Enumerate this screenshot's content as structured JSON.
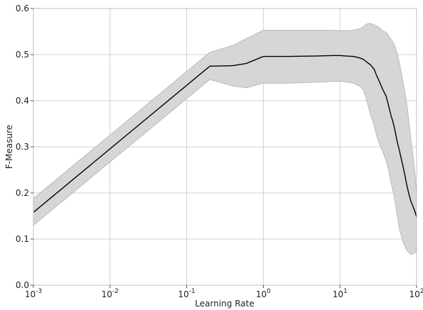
{
  "chart_data": {
    "type": "line",
    "xlabel": "Learning Rate",
    "ylabel": "F-Measure",
    "xscale": "log",
    "xlim": [
      0.001,
      100
    ],
    "ylim": [
      0.0,
      0.6
    ],
    "x_ticks": [
      {
        "value": 0.001,
        "base": "10",
        "exp": "-3"
      },
      {
        "value": 0.01,
        "base": "10",
        "exp": "-2"
      },
      {
        "value": 0.1,
        "base": "10",
        "exp": "-1"
      },
      {
        "value": 1,
        "base": "10",
        "exp": "0"
      },
      {
        "value": 10,
        "base": "10",
        "exp": "1"
      },
      {
        "value": 100,
        "base": "10",
        "exp": "2"
      }
    ],
    "y_ticks": [
      {
        "value": 0.0,
        "label": "0.0"
      },
      {
        "value": 0.1,
        "label": "0.1"
      },
      {
        "value": 0.2,
        "label": "0.2"
      },
      {
        "value": 0.3,
        "label": "0.3"
      },
      {
        "value": 0.4,
        "label": "0.4"
      },
      {
        "value": 0.5,
        "label": "0.5"
      },
      {
        "value": 0.6,
        "label": "0.6"
      }
    ],
    "grid": true,
    "colors": {
      "line": "#000000",
      "band": "#d6d6d6",
      "band_edge": "#b0b0b0",
      "grid": "#cfcfcf"
    },
    "series": [
      {
        "x": [
          0.001,
          0.2,
          0.4,
          0.6,
          1,
          2,
          5,
          8,
          10,
          12,
          15,
          18,
          20,
          22,
          25,
          28,
          30,
          33,
          36,
          40,
          43,
          46,
          50,
          53,
          56,
          60,
          65,
          70,
          75,
          80,
          85,
          90,
          95,
          100
        ],
        "values": [
          0.158,
          0.475,
          0.476,
          0.481,
          0.496,
          0.496,
          0.497,
          0.498,
          0.498,
          0.497,
          0.496,
          0.493,
          0.49,
          0.485,
          0.478,
          0.468,
          0.455,
          0.44,
          0.425,
          0.41,
          0.39,
          0.37,
          0.35,
          0.33,
          0.31,
          0.29,
          0.265,
          0.24,
          0.215,
          0.195,
          0.18,
          0.17,
          0.16,
          0.148
        ],
        "upper": [
          0.188,
          0.505,
          0.52,
          0.535,
          0.553,
          0.553,
          0.553,
          0.553,
          0.552,
          0.552,
          0.553,
          0.556,
          0.56,
          0.566,
          0.568,
          0.565,
          0.562,
          0.558,
          0.552,
          0.548,
          0.542,
          0.534,
          0.525,
          0.515,
          0.5,
          0.48,
          0.45,
          0.42,
          0.39,
          0.35,
          0.31,
          0.28,
          0.245,
          0.2
        ],
        "lower": [
          0.13,
          0.446,
          0.432,
          0.428,
          0.438,
          0.438,
          0.44,
          0.442,
          0.442,
          0.441,
          0.438,
          0.432,
          0.425,
          0.405,
          0.37,
          0.345,
          0.325,
          0.305,
          0.29,
          0.27,
          0.25,
          0.225,
          0.2,
          0.175,
          0.15,
          0.12,
          0.1,
          0.085,
          0.075,
          0.07,
          0.066,
          0.068,
          0.07,
          0.08
        ]
      }
    ]
  }
}
